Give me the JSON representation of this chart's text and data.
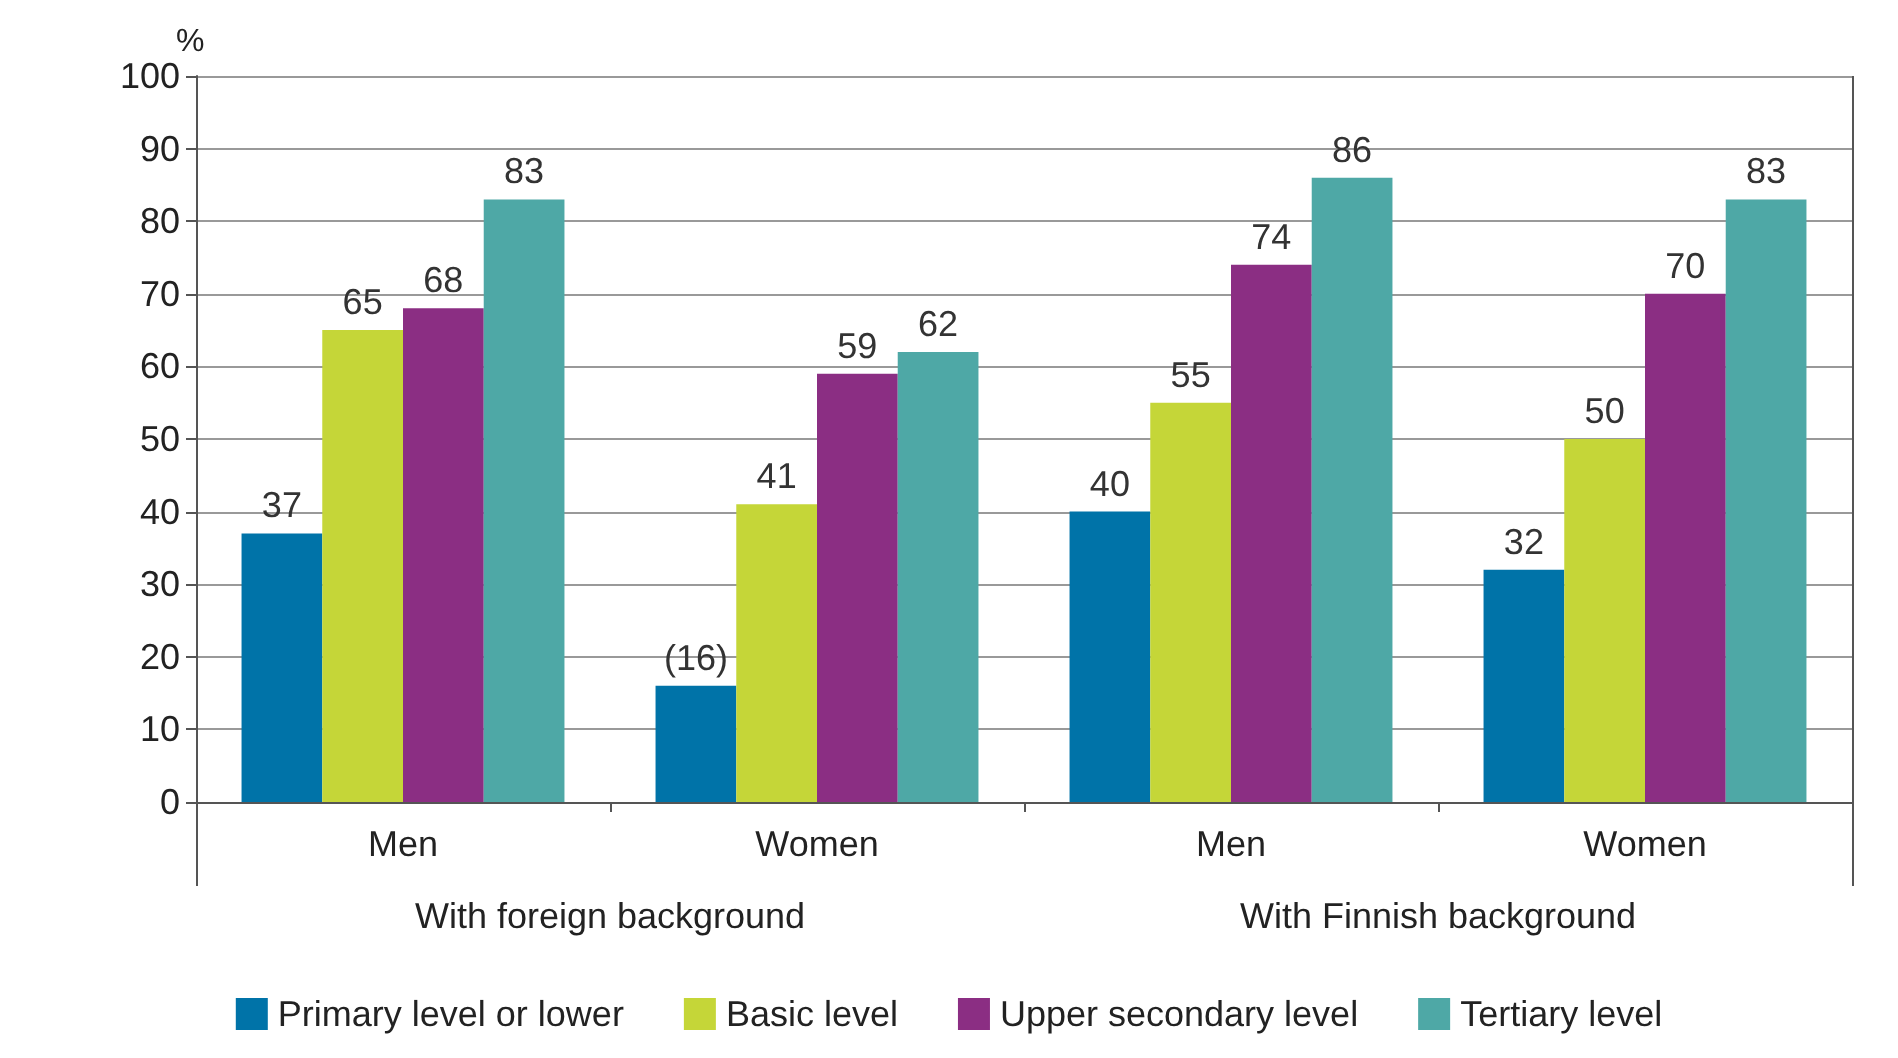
{
  "chart_data": {
    "type": "bar",
    "ylabel": "%",
    "categories": [
      "Men",
      "Women",
      "Men",
      "Women"
    ],
    "annotations": [
      "With foreign background",
      "With Finnish background"
    ],
    "series": [
      {
        "name": "Primary level or lower",
        "color": "#0073a8",
        "values": [
          37,
          16,
          40,
          32
        ],
        "value_labels": [
          "37",
          "(16)",
          "40",
          "32"
        ]
      },
      {
        "name": "Basic level",
        "color": "#c5d638",
        "values": [
          65,
          41,
          55,
          50
        ],
        "value_labels": [
          "65",
          "41",
          "55",
          "50"
        ]
      },
      {
        "name": "Upper secondary level",
        "color": "#8b2e83",
        "values": [
          68,
          59,
          74,
          70
        ],
        "value_labels": [
          "68",
          "59",
          "74",
          "70"
        ]
      },
      {
        "name": "Tertiary level",
        "color": "#4ea8a6",
        "values": [
          83,
          62,
          86,
          83
        ],
        "value_labels": [
          "83",
          "62",
          "86",
          "83"
        ]
      }
    ],
    "ylim": [
      0,
      100
    ],
    "yticks": [
      0,
      10,
      20,
      30,
      40,
      50,
      60,
      70,
      80,
      90,
      100
    ],
    "grid": "y",
    "legend": "bottom"
  }
}
